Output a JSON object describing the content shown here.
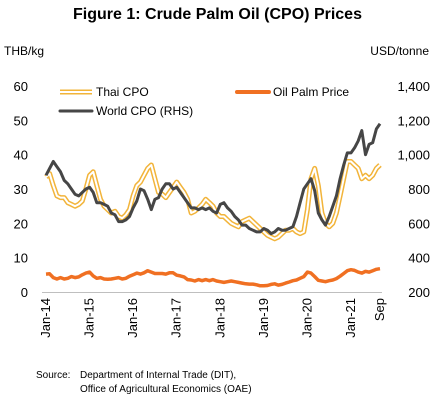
{
  "title": "Figure 1: Crude Palm Oil (CPO) Prices",
  "left_unit": "THB/kg",
  "right_unit": "USD/tonne",
  "source": {
    "label": "Source:",
    "lines": [
      "Department of Internal Trade (DIT),",
      "Office of Agricultural Economics (OAE)"
    ]
  },
  "chart_data": {
    "type": "line",
    "x_start": "2014-01",
    "x_end": "2021-09",
    "x_ticks": [
      "Jan-14",
      "Jan-15",
      "Jan-16",
      "Jan-17",
      "Jan-18",
      "Jan-19",
      "Jan-20",
      "Jan-21",
      "Sep"
    ],
    "y_left": {
      "label": "THB/kg",
      "range": [
        0,
        60
      ],
      "ticks": [
        "0",
        "10",
        "20",
        "30",
        "40",
        "50",
        "60"
      ]
    },
    "y_right": {
      "label": "USD/tonne",
      "range": [
        200,
        1400
      ],
      "ticks": [
        "200",
        "400",
        "600",
        "800",
        "1,000",
        "1,200",
        "1,400"
      ]
    },
    "legend_position": "top-left",
    "series": [
      {
        "name": "Thai CPO",
        "axis": "left",
        "color": "#F2B43A",
        "style": "double-line",
        "values": [
          33.5,
          34.5,
          31,
          28,
          27.5,
          27.5,
          26,
          25.5,
          25,
          25.5,
          26.5,
          30,
          34,
          35,
          31,
          27,
          25,
          24,
          23,
          23.5,
          22,
          21.5,
          22.5,
          24,
          28,
          31,
          32,
          34,
          36,
          37,
          33,
          29,
          28.5,
          27.5,
          29,
          30.5,
          32,
          30.5,
          29,
          27,
          23,
          23.5,
          24.5,
          25.5,
          27,
          26,
          25,
          23,
          22,
          22,
          21,
          20,
          19.5,
          19,
          20.5,
          21,
          21.5,
          20.5,
          19.5,
          18.5,
          17.5,
          16.5,
          16,
          15.5,
          16,
          17,
          18,
          18,
          18.5,
          17.5,
          17,
          17.5,
          24,
          33,
          36,
          31,
          23,
          20,
          19,
          20,
          23,
          28,
          33,
          38,
          38,
          37,
          36,
          33,
          34,
          33,
          34,
          36,
          37
        ]
      },
      {
        "name": "Oil Palm Price",
        "axis": "left",
        "color": "#F07022",
        "style": "thick",
        "values": [
          5.2,
          5.3,
          4.2,
          3.8,
          4.2,
          3.8,
          4.0,
          4.5,
          4.2,
          4.4,
          5.0,
          5.5,
          5.8,
          4.7,
          4.0,
          4.2,
          3.8,
          3.7,
          3.8,
          4.0,
          4.2,
          3.8,
          4.0,
          4.6,
          5.0,
          5.5,
          5.2,
          5.6,
          6.2,
          5.8,
          5.4,
          5.4,
          5.4,
          5.2,
          5.6,
          5.6,
          4.9,
          4.7,
          4.4,
          3.6,
          3.5,
          3.2,
          3.6,
          3.3,
          3.6,
          3.3,
          3.6,
          3.2,
          3.0,
          2.8,
          3.0,
          3.2,
          3.0,
          2.8,
          2.6,
          2.4,
          2.3,
          2.3,
          2.1,
          1.8,
          1.8,
          1.9,
          2.2,
          2.4,
          2.0,
          2.2,
          2.6,
          2.9,
          3.3,
          3.5,
          4.0,
          4.5,
          5.8,
          5.5,
          4.5,
          3.4,
          3.2,
          3.0,
          3.3,
          3.5,
          3.9,
          4.6,
          5.4,
          6.2,
          6.5,
          6.3,
          5.8,
          5.5,
          6.0,
          5.8,
          6.2,
          6.6,
          6.8
        ]
      },
      {
        "name": "World CPO (RHS)",
        "axis": "right",
        "color": "#464646",
        "style": "line",
        "values": [
          880,
          920,
          960,
          930,
          900,
          850,
          830,
          800,
          770,
          760,
          780,
          800,
          810,
          780,
          720,
          720,
          710,
          700,
          660,
          650,
          610,
          610,
          620,
          640,
          690,
          730,
          800,
          790,
          740,
          680,
          740,
          750,
          800,
          830,
          830,
          800,
          810,
          780,
          750,
          720,
          690,
          690,
          680,
          690,
          680,
          690,
          670,
          660,
          710,
          720,
          690,
          670,
          640,
          620,
          590,
          590,
          570,
          560,
          550,
          550,
          570,
          560,
          540,
          550,
          570,
          560,
          560,
          570,
          580,
          640,
          720,
          800,
          830,
          860,
          790,
          660,
          620,
          590,
          640,
          700,
          760,
          860,
          940,
          1010,
          1010,
          1040,
          1080,
          1140,
          1000,
          1060,
          1070,
          1150,
          1180
        ]
      }
    ]
  }
}
